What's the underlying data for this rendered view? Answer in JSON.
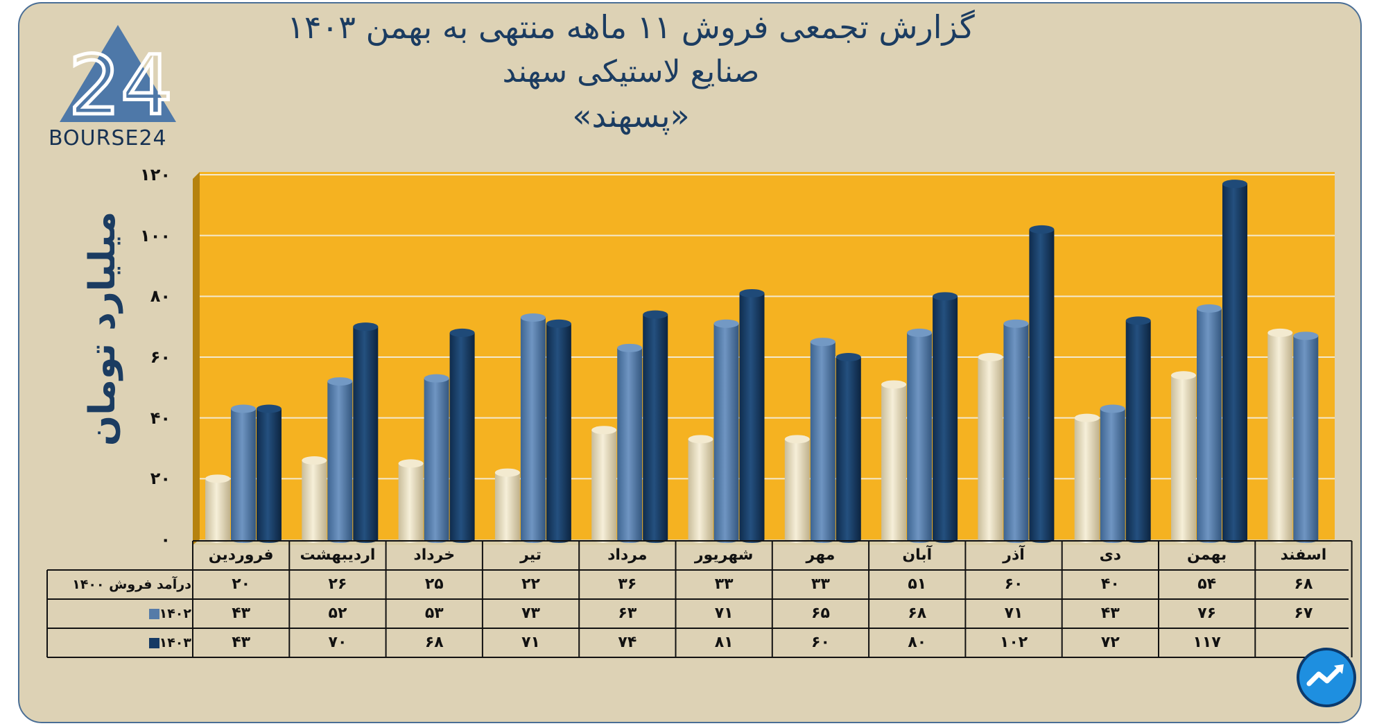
{
  "title": {
    "line1": "گزارش تجمعی فروش ۱۱ ماهه منتهی به بهمن ۱۴۰۳",
    "line2": "صنایع لاستیکی سهند",
    "line3": "«پسهند»"
  },
  "logo": {
    "text": "BOURSE24",
    "mark": "24"
  },
  "colors": {
    "series_1400": "#ede2c2",
    "series_1402": "#557ba8",
    "series_1403": "#163a64",
    "plot_bg": "#f5b221",
    "frame_bg": "#ddd2b5",
    "accent": "#1b3c61"
  },
  "chart_data": {
    "type": "bar",
    "title": "گزارش تجمعی فروش ۱۱ ماهه منتهی به بهمن ۱۴۰۳ - صنایع لاستیکی سهند «پسهند»",
    "ylabel": "میلیارد تومان",
    "xlabel": "",
    "ylim": [
      0,
      120
    ],
    "yticks": [
      0,
      20,
      40,
      60,
      80,
      100,
      120
    ],
    "ytick_labels": [
      "۰",
      "۲۰",
      "۴۰",
      "۶۰",
      "۸۰",
      "۱۰۰",
      "۱۲۰"
    ],
    "categories": [
      "فروردین",
      "اردیبهشت",
      "خرداد",
      "تیر",
      "مرداد",
      "شهریور",
      "مهر",
      "آبان",
      "آذر",
      "دی",
      "بهمن",
      "اسفند"
    ],
    "series": [
      {
        "name": "درآمد فروش ۱۴۰۰",
        "values": [
          20,
          26,
          25,
          22,
          36,
          33,
          33,
          51,
          60,
          40,
          54,
          68
        ],
        "labels": [
          "۲۰",
          "۲۶",
          "۲۵",
          "۲۲",
          "۳۶",
          "۳۳",
          "۳۳",
          "۵۱",
          "۶۰",
          "۴۰",
          "۵۴",
          "۶۸"
        ]
      },
      {
        "name": "۱۴۰۲",
        "values": [
          43,
          52,
          53,
          73,
          63,
          71,
          65,
          68,
          71,
          43,
          76,
          67
        ],
        "labels": [
          "۴۳",
          "۵۲",
          "۵۳",
          "۷۳",
          "۶۳",
          "۷۱",
          "۶۵",
          "۶۸",
          "۷۱",
          "۴۳",
          "۷۶",
          "۶۷"
        ]
      },
      {
        "name": "۱۴۰۳",
        "values": [
          43,
          70,
          68,
          71,
          74,
          81,
          60,
          80,
          102,
          72,
          117,
          null
        ],
        "labels": [
          "۴۳",
          "۷۰",
          "۶۸",
          "۷۱",
          "۷۴",
          "۸۱",
          "۶۰",
          "۸۰",
          "۱۰۲",
          "۷۲",
          "۱۱۷",
          ""
        ]
      }
    ],
    "grid": true
  }
}
